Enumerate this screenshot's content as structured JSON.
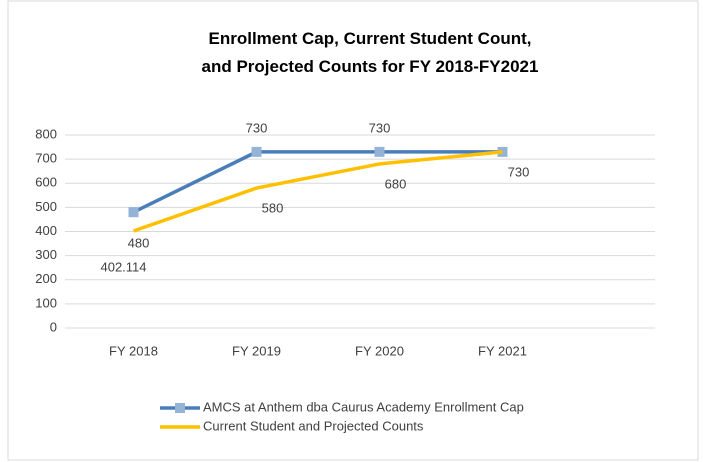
{
  "chart_data": {
    "type": "line",
    "title": "Enrollment Cap, Current Student Count, and Projected Counts for FY 2018-FY2021",
    "categories": [
      "FY 2018",
      "FY 2019",
      "FY 2020",
      "FY 2021"
    ],
    "series": [
      {
        "name": "AMCS at Anthem dba Caurus Academy Enrollment Cap",
        "color": "#4a7ebb",
        "marker_color": "#95b3d7",
        "values": [
          480,
          730,
          730,
          730
        ],
        "value_labels": [
          480,
          730,
          730,
          null
        ]
      },
      {
        "name": "Current Student and Projected Counts",
        "color": "#ffc000",
        "values": [
          402.114,
          580,
          680,
          730
        ]
      }
    ],
    "ylim": [
      0,
      800
    ],
    "yticks": [
      0,
      100,
      200,
      300,
      400,
      500,
      600,
      700,
      800
    ],
    "grid": true,
    "legend": "bottom"
  }
}
